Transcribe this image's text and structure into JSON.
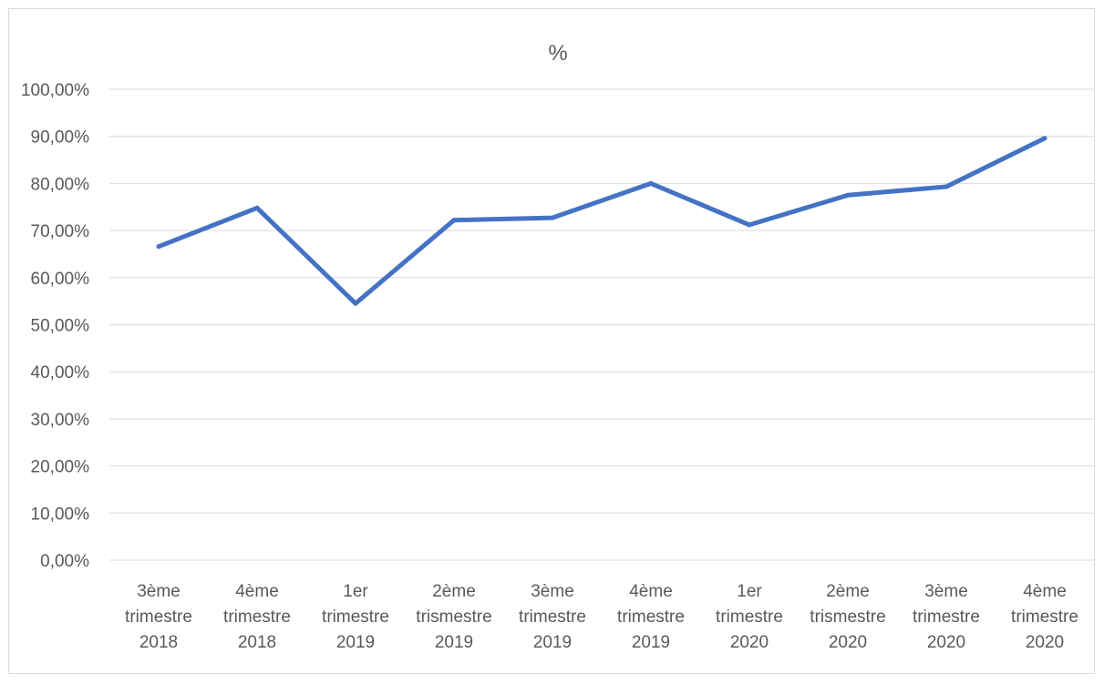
{
  "chart_data": {
    "type": "line",
    "title": "%",
    "xlabel": "",
    "ylabel": "",
    "categories": [
      [
        "3ème",
        "trimestre",
        "2018"
      ],
      [
        "4ème",
        "trimestre",
        "2018"
      ],
      [
        "1er",
        "trimestre",
        "2019"
      ],
      [
        "2ème",
        "trismestre",
        "2019"
      ],
      [
        "3ème",
        "trimestre",
        "2019"
      ],
      [
        "4ème",
        "trimestre",
        "2019"
      ],
      [
        "1er",
        "trimestre",
        "2020"
      ],
      [
        "2ème",
        "trismestre",
        "2020"
      ],
      [
        "3ème",
        "trimestre",
        "2020"
      ],
      [
        "4ème",
        "trimestre",
        "2020"
      ]
    ],
    "series": [
      {
        "values": [
          66.6,
          74.8,
          54.5,
          72.2,
          72.7,
          80.0,
          71.2,
          77.5,
          79.3,
          89.6
        ],
        "color": "#4472c4"
      }
    ],
    "ylim": [
      0,
      100
    ],
    "yticks": [
      "0,00%",
      "10,00%",
      "20,00%",
      "30,00%",
      "40,00%",
      "50,00%",
      "60,00%",
      "70,00%",
      "80,00%",
      "90,00%",
      "100,00%"
    ],
    "grid": true,
    "gridColor": "#d9d9d9",
    "textColor": "#595959",
    "legend": "none"
  }
}
